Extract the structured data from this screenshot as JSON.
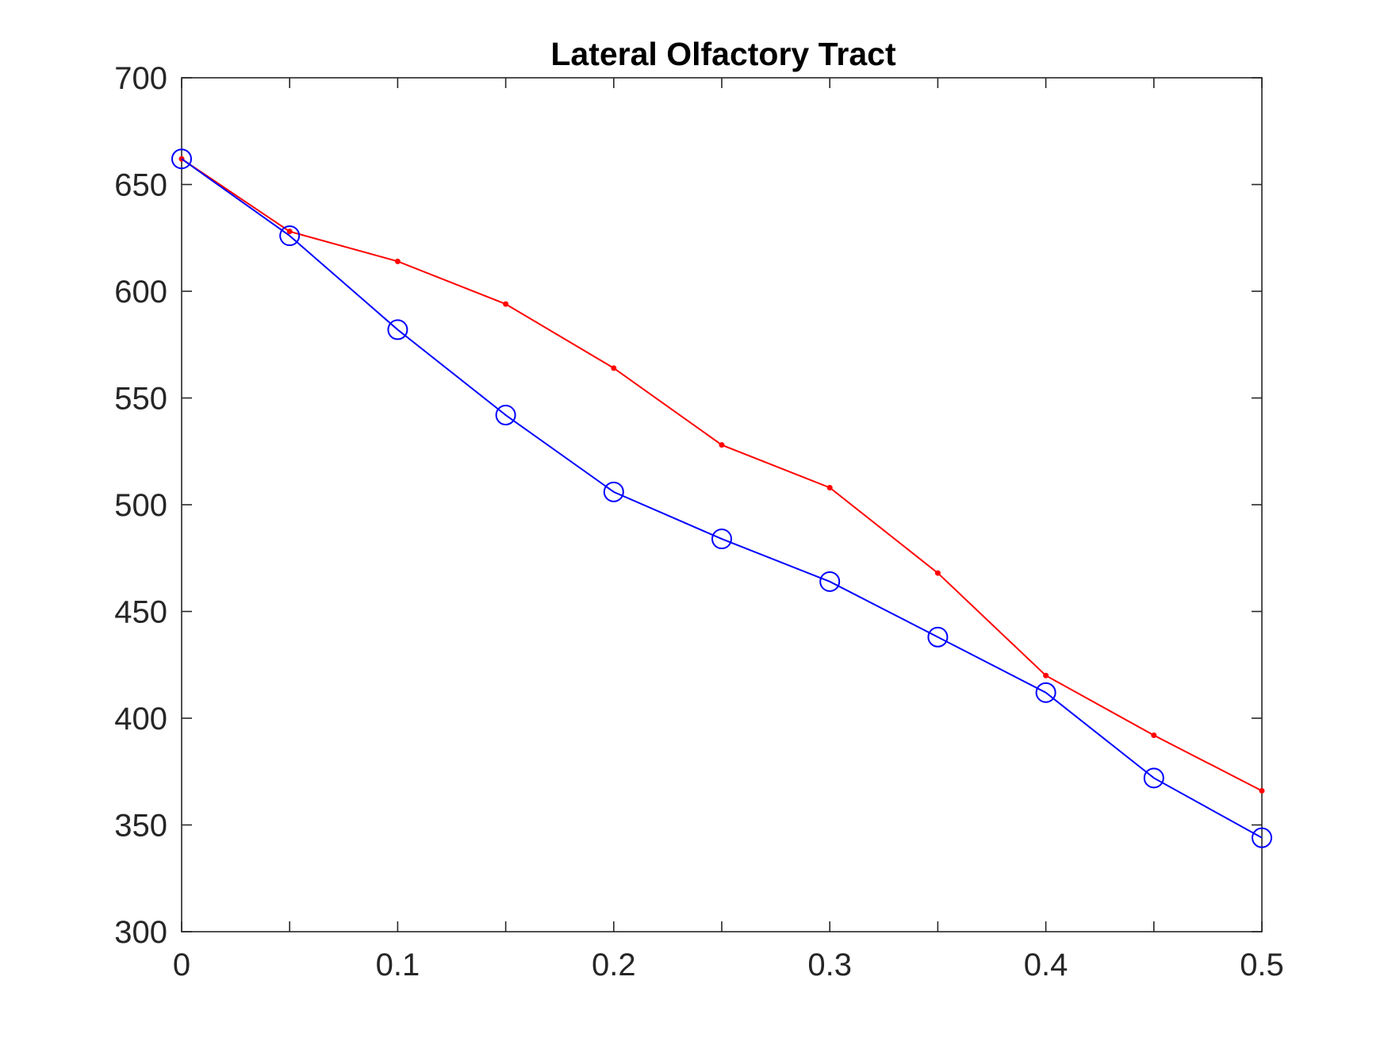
{
  "chart_data": {
    "type": "line",
    "title": "Lateral Olfactory Tract",
    "xlabel": "",
    "ylabel": "",
    "xlim": [
      0,
      0.5
    ],
    "ylim": [
      300,
      700
    ],
    "x_ticks": [
      0,
      0.05,
      0.1,
      0.15,
      0.2,
      0.25,
      0.3,
      0.35,
      0.4,
      0.45,
      0.5
    ],
    "x_tick_labels": [
      "0",
      "",
      "0.1",
      "",
      "0.2",
      "",
      "0.3",
      "",
      "0.4",
      "",
      "0.5"
    ],
    "y_ticks": [
      300,
      350,
      400,
      450,
      500,
      550,
      600,
      650,
      700
    ],
    "y_tick_labels": [
      "300",
      "350",
      "400",
      "450",
      "500",
      "550",
      "600",
      "650",
      "700"
    ],
    "grid": false,
    "legend": "none",
    "x": [
      0,
      0.05,
      0.1,
      0.15,
      0.2,
      0.25,
      0.3,
      0.35,
      0.4,
      0.45,
      0.5
    ],
    "series": [
      {
        "color": "#ff0000",
        "marker": "dot",
        "values": [
          662,
          628,
          614,
          594,
          564,
          528,
          508,
          468,
          420,
          392,
          366
        ]
      },
      {
        "color": "#0000ff",
        "marker": "circle",
        "values": [
          662,
          626,
          582,
          542,
          506,
          484,
          464,
          438,
          412,
          372,
          344
        ]
      }
    ]
  }
}
